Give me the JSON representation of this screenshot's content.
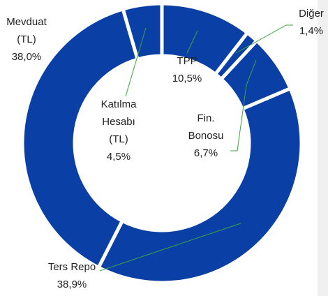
{
  "chart_data": {
    "type": "donut",
    "categories": [
      "TPP",
      "Diğer",
      "Fin. Bonosu",
      "Ters Repo",
      "Mevduat (TL)",
      "Katılma Hesabı (TL)"
    ],
    "values": [
      10.5,
      1.4,
      6.7,
      38.9,
      38.0,
      4.5
    ],
    "value_labels": [
      "10,5%",
      "1,4%",
      "6,7%",
      "38,9%",
      "38,0%",
      "4,5%"
    ],
    "color": "#0a3fa6"
  }
}
